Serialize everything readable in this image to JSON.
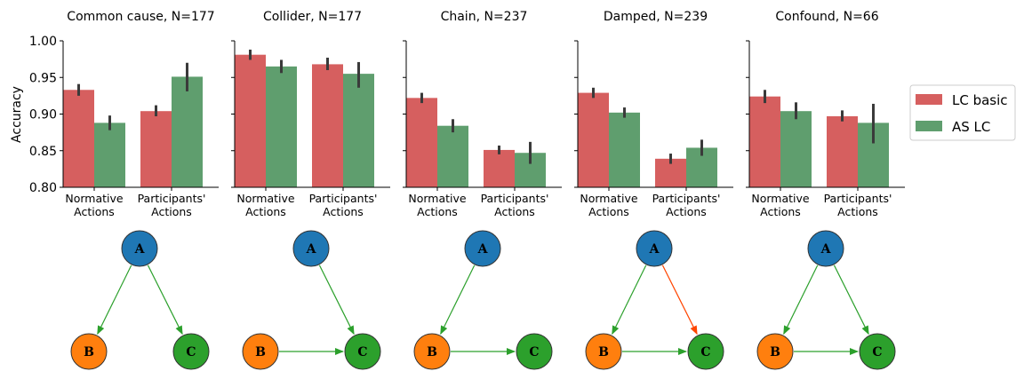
{
  "colors": {
    "lc_basic": "#d65f5f",
    "as_lc": "#5f9e6e",
    "node_a": "#1f77b4",
    "node_b": "#ff7f0e",
    "node_c": "#2ca02c",
    "edge_green": "#2ca02c",
    "edge_orange": "#ff4500",
    "error_bar": "#3a3a3a"
  },
  "legend": {
    "placement": "right",
    "entries": [
      {
        "label": "LC basic",
        "color": "#d65f5f"
      },
      {
        "label": "AS LC",
        "color": "#5f9e6e"
      }
    ]
  },
  "chart_data": [
    {
      "type": "bar",
      "title": "Common cause, N=177",
      "ylabel": "Accuracy",
      "ylim": [
        0.8,
        1.0
      ],
      "yticks": [
        "0.80",
        "0.85",
        "0.90",
        "0.95",
        "1.00"
      ],
      "ytick_values": [
        0.8,
        0.85,
        0.9,
        0.95,
        1.0
      ],
      "categories": [
        [
          "Normative",
          "Actions"
        ],
        [
          "Participants'",
          "Actions"
        ]
      ],
      "series": [
        {
          "name": "LC basic",
          "values": [
            0.933,
            0.904
          ],
          "err": [
            [
              0.925,
              0.941
            ],
            [
              0.897,
              0.912
            ]
          ]
        },
        {
          "name": "AS LC",
          "values": [
            0.888,
            0.951
          ],
          "err": [
            [
              0.878,
              0.898
            ],
            [
              0.931,
              0.97
            ]
          ]
        }
      ],
      "graph": {
        "nodes": [
          {
            "id": "A",
            "label": "A"
          },
          {
            "id": "B",
            "label": "B"
          },
          {
            "id": "C",
            "label": "C"
          }
        ],
        "edges": [
          {
            "from": "A",
            "to": "B",
            "color": "green"
          },
          {
            "from": "A",
            "to": "C",
            "color": "green"
          }
        ]
      }
    },
    {
      "type": "bar",
      "title": "Collider, N=177",
      "ylabel": "",
      "ylim": [
        0.8,
        1.0
      ],
      "yticks": [],
      "ytick_values": [
        0.8,
        0.85,
        0.9,
        0.95,
        1.0
      ],
      "categories": [
        [
          "Normative",
          "Actions"
        ],
        [
          "Participants'",
          "Actions"
        ]
      ],
      "series": [
        {
          "name": "LC basic",
          "values": [
            0.981,
            0.968
          ],
          "err": [
            [
              0.974,
              0.988
            ],
            [
              0.96,
              0.977
            ]
          ]
        },
        {
          "name": "AS LC",
          "values": [
            0.965,
            0.955
          ],
          "err": [
            [
              0.956,
              0.974
            ],
            [
              0.936,
              0.971
            ]
          ]
        }
      ],
      "graph": {
        "nodes": [
          {
            "id": "A",
            "label": "A"
          },
          {
            "id": "B",
            "label": "B"
          },
          {
            "id": "C",
            "label": "C"
          }
        ],
        "edges": [
          {
            "from": "A",
            "to": "C",
            "color": "green"
          },
          {
            "from": "B",
            "to": "C",
            "color": "green"
          }
        ]
      }
    },
    {
      "type": "bar",
      "title": "Chain, N=237",
      "ylabel": "",
      "ylim": [
        0.8,
        1.0
      ],
      "yticks": [],
      "ytick_values": [
        0.8,
        0.85,
        0.9,
        0.95,
        1.0
      ],
      "categories": [
        [
          "Normative",
          "Actions"
        ],
        [
          "Participants'",
          "Actions"
        ]
      ],
      "series": [
        {
          "name": "LC basic",
          "values": [
            0.922,
            0.851
          ],
          "err": [
            [
              0.915,
              0.929
            ],
            [
              0.845,
              0.857
            ]
          ]
        },
        {
          "name": "AS LC",
          "values": [
            0.884,
            0.847
          ],
          "err": [
            [
              0.875,
              0.893
            ],
            [
              0.832,
              0.862
            ]
          ]
        }
      ],
      "graph": {
        "nodes": [
          {
            "id": "A",
            "label": "A"
          },
          {
            "id": "B",
            "label": "B"
          },
          {
            "id": "C",
            "label": "C"
          }
        ],
        "edges": [
          {
            "from": "A",
            "to": "B",
            "color": "green"
          },
          {
            "from": "B",
            "to": "C",
            "color": "green"
          }
        ]
      }
    },
    {
      "type": "bar",
      "title": "Damped, N=239",
      "ylabel": "",
      "ylim": [
        0.8,
        1.0
      ],
      "yticks": [],
      "ytick_values": [
        0.8,
        0.85,
        0.9,
        0.95,
        1.0
      ],
      "categories": [
        [
          "Normative",
          "Actions"
        ],
        [
          "Participants'",
          "Actions"
        ]
      ],
      "series": [
        {
          "name": "LC basic",
          "values": [
            0.929,
            0.839
          ],
          "err": [
            [
              0.922,
              0.936
            ],
            [
              0.832,
              0.846
            ]
          ]
        },
        {
          "name": "AS LC",
          "values": [
            0.902,
            0.854
          ],
          "err": [
            [
              0.895,
              0.909
            ],
            [
              0.843,
              0.865
            ]
          ]
        }
      ],
      "graph": {
        "nodes": [
          {
            "id": "A",
            "label": "A"
          },
          {
            "id": "B",
            "label": "B"
          },
          {
            "id": "C",
            "label": "C"
          }
        ],
        "edges": [
          {
            "from": "A",
            "to": "B",
            "color": "green"
          },
          {
            "from": "A",
            "to": "C",
            "color": "orange"
          },
          {
            "from": "B",
            "to": "C",
            "color": "green"
          }
        ]
      }
    },
    {
      "type": "bar",
      "title": "Confound, N=66",
      "ylabel": "",
      "ylim": [
        0.8,
        1.0
      ],
      "yticks": [],
      "ytick_values": [
        0.8,
        0.85,
        0.9,
        0.95,
        1.0
      ],
      "categories": [
        [
          "Normative",
          "Actions"
        ],
        [
          "Participants'",
          "Actions"
        ]
      ],
      "series": [
        {
          "name": "LC basic",
          "values": [
            0.924,
            0.897
          ],
          "err": [
            [
              0.915,
              0.933
            ],
            [
              0.89,
              0.905
            ]
          ]
        },
        {
          "name": "AS LC",
          "values": [
            0.904,
            0.888
          ],
          "err": [
            [
              0.893,
              0.916
            ],
            [
              0.86,
              0.914
            ]
          ]
        }
      ],
      "graph": {
        "nodes": [
          {
            "id": "A",
            "label": "A"
          },
          {
            "id": "B",
            "label": "B"
          },
          {
            "id": "C",
            "label": "C"
          }
        ],
        "edges": [
          {
            "from": "A",
            "to": "B",
            "color": "green"
          },
          {
            "from": "A",
            "to": "C",
            "color": "green"
          },
          {
            "from": "B",
            "to": "C",
            "color": "green"
          }
        ]
      }
    }
  ]
}
